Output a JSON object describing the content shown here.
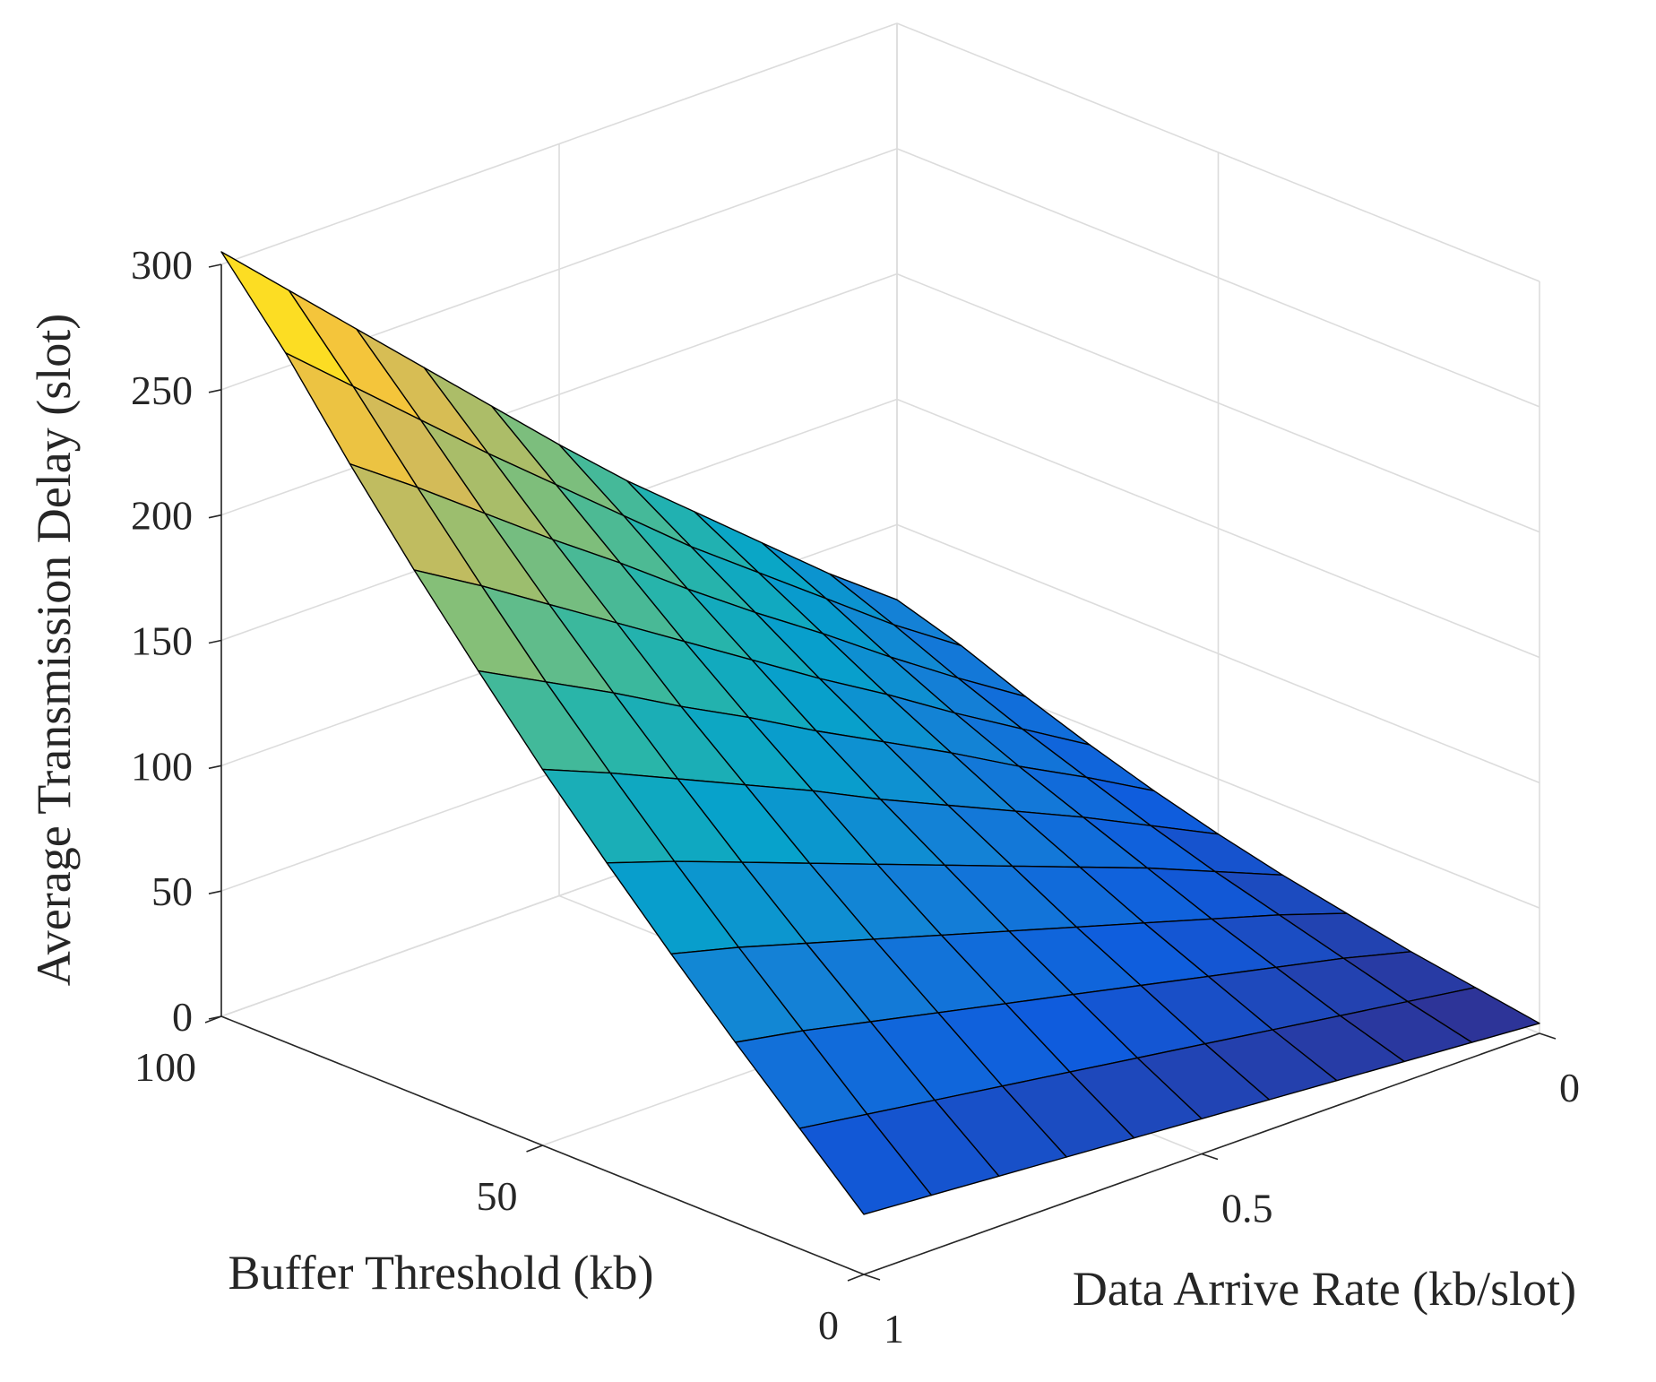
{
  "chart_data": {
    "type": "surface3d",
    "title": "",
    "xlabel": "Buffer Threshold (kb)",
    "ylabel": "Data Arrive Rate (kb/slot)",
    "zlabel": "Average Transmission Delay (slot)",
    "xlim": [
      0,
      100
    ],
    "ylim": [
      0,
      1
    ],
    "zlim": [
      0,
      300
    ],
    "xticks": [
      0,
      50,
      100
    ],
    "xticklabels": [
      "0",
      "50",
      "100"
    ],
    "yticks": [
      0,
      0.5,
      1
    ],
    "yticklabels": [
      "0",
      "0.5",
      "1"
    ],
    "zticks": [
      0,
      50,
      100,
      150,
      200,
      250,
      300
    ],
    "zticklabels": [
      "0",
      "50",
      "100",
      "150",
      "200",
      "250",
      "300"
    ],
    "grid": true,
    "colormap": "parula",
    "colormap_stops": [
      "#352a87",
      "#0f5cdd",
      "#1481d6",
      "#06a4ca",
      "#2eb7a4",
      "#87bf77",
      "#d1bb59",
      "#fec832",
      "#f9fb0e"
    ],
    "x": [
      0,
      10,
      20,
      30,
      40,
      50,
      60,
      70,
      80,
      90,
      100
    ],
    "y": [
      0,
      0.1,
      0.2,
      0.3,
      0.4,
      0.5,
      0.6,
      0.7,
      0.8,
      0.9,
      1.0
    ],
    "z": [
      [
        4,
        8,
        12,
        17,
        22,
        28,
        35,
        43,
        52,
        62,
        70
      ],
      [
        6,
        12,
        19,
        26,
        33,
        41,
        50,
        59,
        69,
        80,
        90
      ],
      [
        8,
        16,
        25,
        34,
        44,
        54,
        64,
        75,
        87,
        100,
        112
      ],
      [
        10,
        20,
        31,
        42,
        54,
        66,
        79,
        92,
        106,
        120,
        134
      ],
      [
        12,
        24,
        37,
        50,
        64,
        78,
        93,
        108,
        124,
        140,
        156
      ],
      [
        14,
        28,
        43,
        58,
        74,
        90,
        107,
        125,
        143,
        162,
        180
      ],
      [
        16,
        32,
        49,
        66,
        84,
        103,
        122,
        142,
        163,
        184,
        205
      ],
      [
        18,
        36,
        55,
        74,
        94,
        115,
        136,
        159,
        182,
        206,
        230
      ],
      [
        20,
        40,
        61,
        82,
        104,
        127,
        151,
        176,
        202,
        229,
        255
      ],
      [
        22,
        44,
        67,
        90,
        114,
        139,
        165,
        193,
        222,
        252,
        280
      ],
      [
        24,
        48,
        72,
        97,
        123,
        150,
        179,
        209,
        241,
        275,
        305
      ]
    ]
  }
}
